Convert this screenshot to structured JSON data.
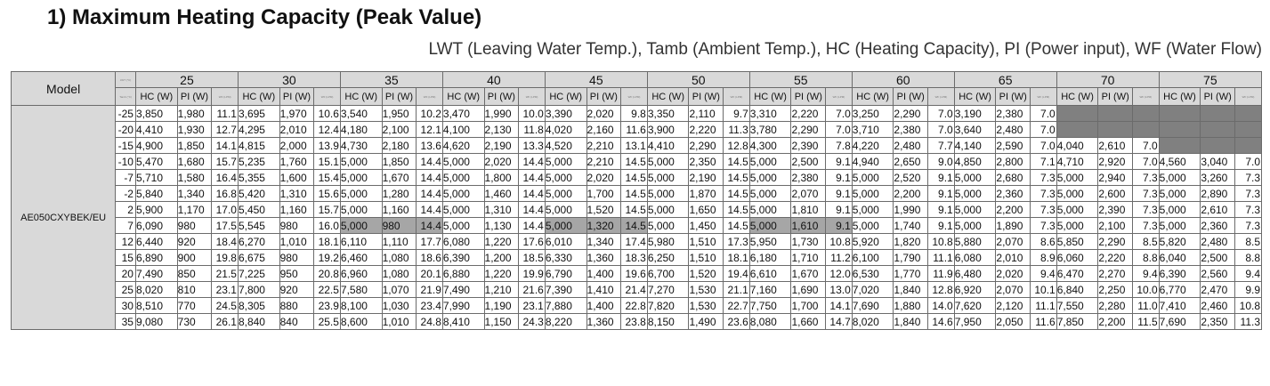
{
  "title": "1) Maximum Heating Capacity (Peak Value)",
  "subtitle": "LWT (Leaving Water Temp.), Tamb (Ambient Temp.), HC (Heating Capacity), PI (Power input), WF (Water Flow)",
  "header": {
    "model_label": "Model",
    "lwt_unit": "LWT (°C)",
    "tamb_unit": "Tamb (°C)",
    "hc_label": "HC (W)",
    "pi_label": "PI (W)",
    "wf_label": "WF (LPM)",
    "lwt_values": [
      "25",
      "30",
      "35",
      "40",
      "45",
      "50",
      "55",
      "60",
      "65",
      "70",
      "75"
    ]
  },
  "model": "AE050CXYBEK/EU",
  "colors": {
    "header_bg": "#d9d9d9",
    "unavailable": "#808080",
    "highlight": "#a6a6a6"
  },
  "rows": [
    {
      "tamb": "-25",
      "cells": [
        [
          "3,850",
          "1,980",
          "11.1"
        ],
        [
          "3,695",
          "1,970",
          "10.6"
        ],
        [
          "3,540",
          "1,950",
          "10.2"
        ],
        [
          "3,470",
          "1,990",
          "10.0"
        ],
        [
          "3,390",
          "2,020",
          "9.8"
        ],
        [
          "3,350",
          "2,110",
          "9.7"
        ],
        [
          "3,310",
          "2,220",
          "7.0"
        ],
        [
          "3,250",
          "2,290",
          "7.0"
        ],
        [
          "3,190",
          "2,380",
          "7.0"
        ],
        null,
        null
      ]
    },
    {
      "tamb": "-20",
      "cells": [
        [
          "4,410",
          "1,930",
          "12.7"
        ],
        [
          "4,295",
          "2,010",
          "12.4"
        ],
        [
          "4,180",
          "2,100",
          "12.1"
        ],
        [
          "4,100",
          "2,130",
          "11.8"
        ],
        [
          "4,020",
          "2,160",
          "11.6"
        ],
        [
          "3,900",
          "2,220",
          "11.3"
        ],
        [
          "3,780",
          "2,290",
          "7.0"
        ],
        [
          "3,710",
          "2,380",
          "7.0"
        ],
        [
          "3,640",
          "2,480",
          "7.0"
        ],
        null,
        null
      ]
    },
    {
      "tamb": "-15",
      "cells": [
        [
          "4,900",
          "1,850",
          "14.1"
        ],
        [
          "4,815",
          "2,000",
          "13.9"
        ],
        [
          "4,730",
          "2,180",
          "13.6"
        ],
        [
          "4,620",
          "2,190",
          "13.3"
        ],
        [
          "4,520",
          "2,210",
          "13.1"
        ],
        [
          "4,410",
          "2,290",
          "12.8"
        ],
        [
          "4,300",
          "2,390",
          "7.8"
        ],
        [
          "4,220",
          "2,480",
          "7.7"
        ],
        [
          "4,140",
          "2,590",
          "7.0"
        ],
        [
          "4,040",
          "2,610",
          "7.0"
        ],
        null
      ]
    },
    {
      "tamb": "-10",
      "cells": [
        [
          "5,470",
          "1,680",
          "15.7"
        ],
        [
          "5,235",
          "1,760",
          "15.1"
        ],
        [
          "5,000",
          "1,850",
          "14.4"
        ],
        [
          "5,000",
          "2,020",
          "14.4"
        ],
        [
          "5,000",
          "2,210",
          "14.5"
        ],
        [
          "5,000",
          "2,350",
          "14.5"
        ],
        [
          "5,000",
          "2,500",
          "9.1"
        ],
        [
          "4,940",
          "2,650",
          "9.0"
        ],
        [
          "4,850",
          "2,800",
          "7.1"
        ],
        [
          "4,710",
          "2,920",
          "7.0"
        ],
        [
          "4,560",
          "3,040",
          "7.0"
        ]
      ]
    },
    {
      "tamb": "-7",
      "cells": [
        [
          "5,710",
          "1,580",
          "16.4"
        ],
        [
          "5,355",
          "1,600",
          "15.4"
        ],
        [
          "5,000",
          "1,670",
          "14.4"
        ],
        [
          "5,000",
          "1,800",
          "14.4"
        ],
        [
          "5,000",
          "2,020",
          "14.5"
        ],
        [
          "5,000",
          "2,190",
          "14.5"
        ],
        [
          "5,000",
          "2,380",
          "9.1"
        ],
        [
          "5,000",
          "2,520",
          "9.1"
        ],
        [
          "5,000",
          "2,680",
          "7.3"
        ],
        [
          "5,000",
          "2,940",
          "7.3"
        ],
        [
          "5,000",
          "3,260",
          "7.3"
        ]
      ]
    },
    {
      "tamb": "-2",
      "cells": [
        [
          "5,840",
          "1,340",
          "16.8"
        ],
        [
          "5,420",
          "1,310",
          "15.6"
        ],
        [
          "5,000",
          "1,280",
          "14.4"
        ],
        [
          "5,000",
          "1,460",
          "14.4"
        ],
        [
          "5,000",
          "1,700",
          "14.5"
        ],
        [
          "5,000",
          "1,870",
          "14.5"
        ],
        [
          "5,000",
          "2,070",
          "9.1"
        ],
        [
          "5,000",
          "2,200",
          "9.1"
        ],
        [
          "5,000",
          "2,360",
          "7.3"
        ],
        [
          "5,000",
          "2,600",
          "7.3"
        ],
        [
          "5,000",
          "2,890",
          "7.3"
        ]
      ]
    },
    {
      "tamb": "2",
      "cells": [
        [
          "5,900",
          "1,170",
          "17.0"
        ],
        [
          "5,450",
          "1,160",
          "15.7"
        ],
        [
          "5,000",
          "1,160",
          "14.4"
        ],
        [
          "5,000",
          "1,310",
          "14.4"
        ],
        [
          "5,000",
          "1,520",
          "14.5"
        ],
        [
          "5,000",
          "1,650",
          "14.5"
        ],
        [
          "5,000",
          "1,810",
          "9.1"
        ],
        [
          "5,000",
          "1,990",
          "9.1"
        ],
        [
          "5,000",
          "2,200",
          "7.3"
        ],
        [
          "5,000",
          "2,390",
          "7.3"
        ],
        [
          "5,000",
          "2,610",
          "7.3"
        ]
      ]
    },
    {
      "tamb": "7",
      "cells": [
        [
          "6,090",
          "980",
          "17.5"
        ],
        [
          "5,545",
          "980",
          "16.0"
        ],
        [
          "5,000",
          "980",
          "14.4"
        ],
        [
          "5,000",
          "1,130",
          "14.4"
        ],
        [
          "5,000",
          "1,320",
          "14.5"
        ],
        [
          "5,000",
          "1,450",
          "14.5"
        ],
        [
          "5,000",
          "1,610",
          "9.1"
        ],
        [
          "5,000",
          "1,740",
          "9.1"
        ],
        [
          "5,000",
          "1,890",
          "7.3"
        ],
        [
          "5,000",
          "2,100",
          "7.3"
        ],
        [
          "5,000",
          "2,360",
          "7.3"
        ]
      ]
    },
    {
      "tamb": "12",
      "cells": [
        [
          "6,440",
          "920",
          "18.4"
        ],
        [
          "6,270",
          "1,010",
          "18.1"
        ],
        [
          "6,110",
          "1,110",
          "17.7"
        ],
        [
          "6,080",
          "1,220",
          "17.6"
        ],
        [
          "6,010",
          "1,340",
          "17.4"
        ],
        [
          "5,980",
          "1,510",
          "17.3"
        ],
        [
          "5,950",
          "1,730",
          "10.8"
        ],
        [
          "5,920",
          "1,820",
          "10.8"
        ],
        [
          "5,880",
          "2,070",
          "8.6"
        ],
        [
          "5,850",
          "2,290",
          "8.5"
        ],
        [
          "5,820",
          "2,480",
          "8.5"
        ]
      ]
    },
    {
      "tamb": "15",
      "cells": [
        [
          "6,890",
          "900",
          "19.8"
        ],
        [
          "6,675",
          "980",
          "19.2"
        ],
        [
          "6,460",
          "1,080",
          "18.6"
        ],
        [
          "6,390",
          "1,200",
          "18.5"
        ],
        [
          "6,330",
          "1,360",
          "18.3"
        ],
        [
          "6,250",
          "1,510",
          "18.1"
        ],
        [
          "6,180",
          "1,710",
          "11.2"
        ],
        [
          "6,100",
          "1,790",
          "11.1"
        ],
        [
          "6,080",
          "2,010",
          "8.9"
        ],
        [
          "6,060",
          "2,220",
          "8.8"
        ],
        [
          "6,040",
          "2,500",
          "8.8"
        ]
      ]
    },
    {
      "tamb": "20",
      "cells": [
        [
          "7,490",
          "850",
          "21.5"
        ],
        [
          "7,225",
          "950",
          "20.8"
        ],
        [
          "6,960",
          "1,080",
          "20.1"
        ],
        [
          "6,880",
          "1,220",
          "19.9"
        ],
        [
          "6,790",
          "1,400",
          "19.6"
        ],
        [
          "6,700",
          "1,520",
          "19.4"
        ],
        [
          "6,610",
          "1,670",
          "12.0"
        ],
        [
          "6,530",
          "1,770",
          "11.9"
        ],
        [
          "6,480",
          "2,020",
          "9.4"
        ],
        [
          "6,470",
          "2,270",
          "9.4"
        ],
        [
          "6,390",
          "2,560",
          "9.4"
        ]
      ]
    },
    {
      "tamb": "25",
      "cells": [
        [
          "8,020",
          "810",
          "23.1"
        ],
        [
          "7,800",
          "920",
          "22.5"
        ],
        [
          "7,580",
          "1,070",
          "21.9"
        ],
        [
          "7,490",
          "1,210",
          "21.6"
        ],
        [
          "7,390",
          "1,410",
          "21.4"
        ],
        [
          "7,270",
          "1,530",
          "21.1"
        ],
        [
          "7,160",
          "1,690",
          "13.0"
        ],
        [
          "7,020",
          "1,840",
          "12.8"
        ],
        [
          "6,920",
          "2,070",
          "10.1"
        ],
        [
          "6,840",
          "2,250",
          "10.0"
        ],
        [
          "6,770",
          "2,470",
          "9.9"
        ]
      ]
    },
    {
      "tamb": "30",
      "cells": [
        [
          "8,510",
          "770",
          "24.5"
        ],
        [
          "8,305",
          "880",
          "23.9"
        ],
        [
          "8,100",
          "1,030",
          "23.4"
        ],
        [
          "7,990",
          "1,190",
          "23.1"
        ],
        [
          "7,880",
          "1,400",
          "22.8"
        ],
        [
          "7,820",
          "1,530",
          "22.7"
        ],
        [
          "7,750",
          "1,700",
          "14.1"
        ],
        [
          "7,690",
          "1,880",
          "14.0"
        ],
        [
          "7,620",
          "2,120",
          "11.1"
        ],
        [
          "7,550",
          "2,280",
          "11.0"
        ],
        [
          "7,410",
          "2,460",
          "10.8"
        ]
      ]
    },
    {
      "tamb": "35",
      "cells": [
        [
          "9,080",
          "730",
          "26.1"
        ],
        [
          "8,840",
          "840",
          "25.5"
        ],
        [
          "8,600",
          "1,010",
          "24.8"
        ],
        [
          "8,410",
          "1,150",
          "24.3"
        ],
        [
          "8,220",
          "1,360",
          "23.8"
        ],
        [
          "8,150",
          "1,490",
          "23.6"
        ],
        [
          "8,080",
          "1,660",
          "14.7"
        ],
        [
          "8,020",
          "1,840",
          "14.6"
        ],
        [
          "7,950",
          "2,050",
          "11.6"
        ],
        [
          "7,850",
          "2,200",
          "11.5"
        ],
        [
          "7,690",
          "2,350",
          "11.3"
        ]
      ]
    }
  ],
  "highlighted": [
    {
      "row": "7",
      "col": "35"
    },
    {
      "row": "7",
      "col": "45"
    },
    {
      "row": "7",
      "col": "55"
    }
  ]
}
